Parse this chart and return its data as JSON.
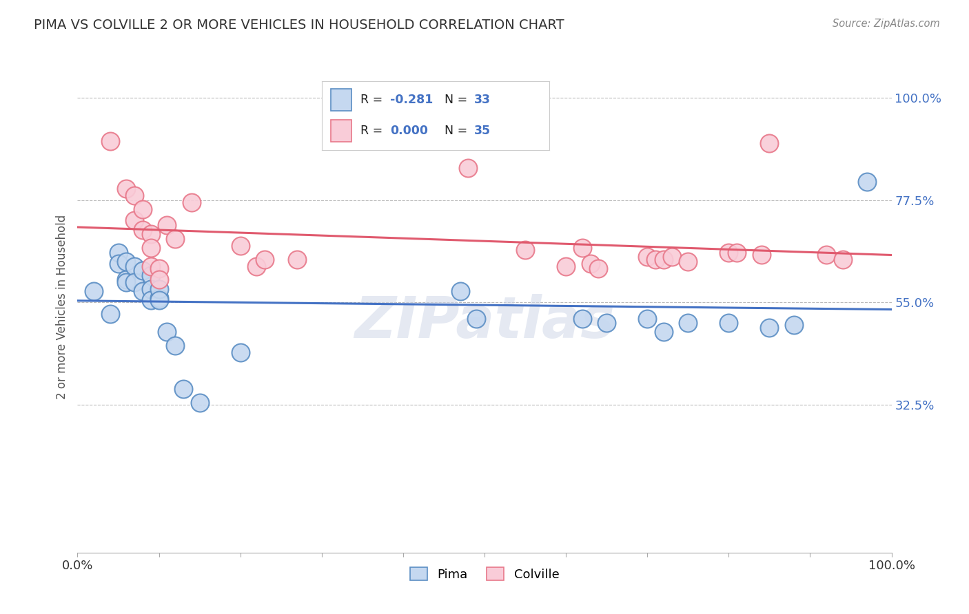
{
  "title": "PIMA VS COLVILLE 2 OR MORE VEHICLES IN HOUSEHOLD CORRELATION CHART",
  "source": "Source: ZipAtlas.com",
  "ylabel": "2 or more Vehicles in Household",
  "xlim": [
    0.0,
    1.0
  ],
  "ylim": [
    0.0,
    1.08
  ],
  "yticks": [
    0.325,
    0.55,
    0.775,
    1.0
  ],
  "ytick_labels": [
    "32.5%",
    "55.0%",
    "77.5%",
    "100.0%"
  ],
  "pima_R": -0.281,
  "pima_N": 33,
  "colville_R": 0.0,
  "colville_N": 35,
  "pima_color": "#c5d8f0",
  "colville_color": "#f9ccd8",
  "pima_edge_color": "#5b8ec4",
  "colville_edge_color": "#e8788a",
  "pima_line_color": "#4472c4",
  "colville_line_color": "#e05a6e",
  "background_color": "#ffffff",
  "grid_color": "#bbbbbb",
  "title_color": "#333333",
  "watermark": "ZIPatlas",
  "legend_R_color": "#4472c4",
  "legend_N_color": "#4472c4",
  "pima_x": [
    0.02,
    0.04,
    0.05,
    0.05,
    0.06,
    0.06,
    0.06,
    0.07,
    0.07,
    0.08,
    0.08,
    0.09,
    0.09,
    0.09,
    0.1,
    0.1,
    0.1,
    0.11,
    0.12,
    0.13,
    0.15,
    0.2,
    0.47,
    0.49,
    0.62,
    0.65,
    0.7,
    0.72,
    0.75,
    0.8,
    0.85,
    0.88,
    0.97
  ],
  "pima_y": [
    0.575,
    0.525,
    0.66,
    0.635,
    0.6,
    0.64,
    0.595,
    0.63,
    0.595,
    0.575,
    0.62,
    0.61,
    0.58,
    0.555,
    0.56,
    0.58,
    0.555,
    0.485,
    0.455,
    0.36,
    0.33,
    0.44,
    0.575,
    0.515,
    0.515,
    0.505,
    0.515,
    0.485,
    0.505,
    0.505,
    0.495,
    0.5,
    0.815
  ],
  "colville_x": [
    0.04,
    0.06,
    0.07,
    0.07,
    0.08,
    0.08,
    0.09,
    0.09,
    0.09,
    0.1,
    0.1,
    0.11,
    0.12,
    0.14,
    0.2,
    0.22,
    0.23,
    0.27,
    0.48,
    0.55,
    0.6,
    0.62,
    0.63,
    0.64,
    0.7,
    0.71,
    0.72,
    0.73,
    0.75,
    0.8,
    0.81,
    0.84,
    0.85,
    0.92,
    0.94
  ],
  "colville_y": [
    0.905,
    0.8,
    0.785,
    0.73,
    0.755,
    0.71,
    0.7,
    0.67,
    0.63,
    0.625,
    0.6,
    0.72,
    0.69,
    0.77,
    0.675,
    0.63,
    0.645,
    0.645,
    0.845,
    0.665,
    0.63,
    0.67,
    0.635,
    0.625,
    0.65,
    0.645,
    0.645,
    0.65,
    0.64,
    0.66,
    0.66,
    0.655,
    0.9,
    0.655,
    0.645
  ]
}
